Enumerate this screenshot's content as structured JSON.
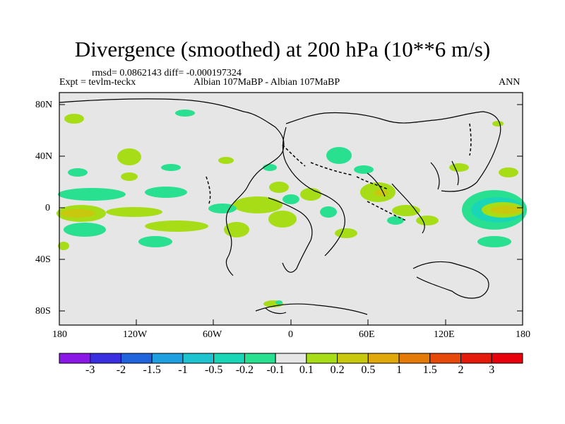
{
  "title": "Divergence (smoothed) at 200 hPa (10**6 m/s)",
  "stats": "rmsd= 0.0862143 diff= -0.000197324",
  "experiment": "Expt = tevlm-teckx",
  "comparison": "Albian   107MaBP - Albian   107MaBP",
  "season": "ANN",
  "y_ticks": [
    "80N",
    "40N",
    "0",
    "40S",
    "80S"
  ],
  "x_ticks": [
    "180",
    "120W",
    "60W",
    "0",
    "60E",
    "120E",
    "180"
  ],
  "colorbar": {
    "labels": [
      "-3",
      "-2",
      "-1.5",
      "-1",
      "-0.5",
      "-0.2",
      "-0.1",
      "0.1",
      "0.2",
      "0.5",
      "1",
      "1.5",
      "2",
      "3"
    ],
    "colors": [
      "#8a17e6",
      "#3a2fe0",
      "#1f63dd",
      "#1ea0e0",
      "#1dc4cf",
      "#19d7b6",
      "#29e091",
      "#e6e6e6",
      "#a6dd16",
      "#c8c80e",
      "#e0a80a",
      "#e47a08",
      "#e6490a",
      "#e61a0a",
      "#e8000a"
    ]
  },
  "colors": {
    "background": "#e6e6e6",
    "neg_light": "#29e091",
    "pos_light": "#a6dd16",
    "pos_mid": "#c8c80e",
    "neg_mid": "#19d7b6"
  }
}
